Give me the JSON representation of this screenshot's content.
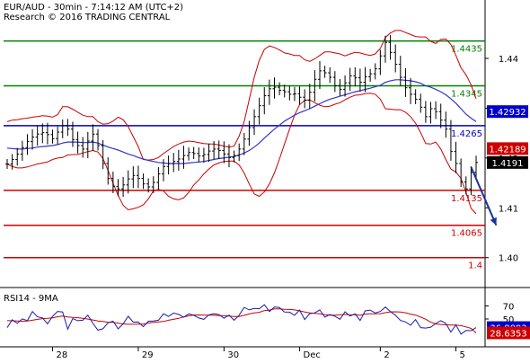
{
  "header": {
    "line1": "EUR/AUD - 30min - 7:14:12 AM (UTC+2)",
    "line2": "Research © 2016 TRADING CENTRAL"
  },
  "rsi_label": "RSI14 - 9MA",
  "colors": {
    "price": "#000000",
    "ma_fast": "#3333cc",
    "bollinger": "#cc0000",
    "support": "#cc0000",
    "resistance": "#008000",
    "pivot": "#0000cc",
    "arrow": "#1a3399",
    "rsi": "#1a1aaa",
    "rsi_ma": "#cc0000",
    "axis_label_bg": "#000000",
    "axis_label_fg": "#ffffff",
    "ma_label_bg": "#0000cc",
    "bb_label_bg": "#cc0000"
  },
  "chart_data": {
    "type": "line",
    "y_axis": {
      "range": [
        1.394,
        1.451
      ],
      "ticks": [
        1.4,
        1.41,
        1.42,
        1.43,
        1.44
      ]
    },
    "x_axis": {
      "tick_labels": [
        "28",
        "29",
        "30",
        "Dec",
        "2",
        "5"
      ],
      "tick_index": [
        9,
        26,
        43,
        58,
        74,
        89
      ]
    },
    "grid": false,
    "levels": [
      {
        "value": 1.4435,
        "label": "1.4435",
        "kind": "resistance"
      },
      {
        "value": 1.4345,
        "label": "1.4345",
        "kind": "resistance"
      },
      {
        "value": 1.4265,
        "label": "1.4265",
        "kind": "pivot"
      },
      {
        "value": 1.4135,
        "label": "1.4135",
        "kind": "support"
      },
      {
        "value": 1.4065,
        "label": "1.4065",
        "kind": "support"
      },
      {
        "value": 1.4,
        "label": "1.4",
        "kind": "support"
      }
    ],
    "price_badges": [
      {
        "value": 1.42932,
        "label": "1.42932",
        "kind": "ma"
      },
      {
        "value": 1.42189,
        "label": "1.42189",
        "kind": "bb"
      },
      {
        "value": 1.4191,
        "label": "1.4191",
        "kind": "price"
      }
    ],
    "forecast_arrow": {
      "from_index": 92,
      "from": 1.4182,
      "to_index": 97,
      "to": 1.4065
    },
    "price_series": [
      1.4188,
      1.4197,
      1.4208,
      1.4221,
      1.4233,
      1.4242,
      1.4248,
      1.4251,
      1.4247,
      1.4239,
      1.4252,
      1.4265,
      1.4258,
      1.4237,
      1.4225,
      1.4218,
      1.4234,
      1.4248,
      1.4225,
      1.4189,
      1.4159,
      1.4143,
      1.4138,
      1.4146,
      1.4158,
      1.4165,
      1.4159,
      1.4148,
      1.4142,
      1.4151,
      1.4168,
      1.4183,
      1.4189,
      1.4193,
      1.4198,
      1.4205,
      1.4211,
      1.4209,
      1.4204,
      1.4207,
      1.4214,
      1.4218,
      1.4215,
      1.4208,
      1.4201,
      1.4205,
      1.4218,
      1.4238,
      1.4261,
      1.4283,
      1.4305,
      1.4325,
      1.4339,
      1.4342,
      1.4336,
      1.4333,
      1.4328,
      1.4329,
      1.4322,
      1.4316,
      1.4332,
      1.4358,
      1.4375,
      1.4371,
      1.4362,
      1.4345,
      1.4338,
      1.4351,
      1.4365,
      1.4361,
      1.4352,
      1.4363,
      1.4369,
      1.4379,
      1.4405,
      1.4432,
      1.4412,
      1.4388,
      1.4362,
      1.4341,
      1.4328,
      1.4318,
      1.4302,
      1.4283,
      1.4299,
      1.4293,
      1.4276,
      1.4258,
      1.4213,
      1.4189,
      1.4152,
      1.4138,
      1.4171,
      1.4191
    ],
    "bb_upper": [
      1.4273,
      1.4276,
      1.4277,
      1.4279,
      1.428,
      1.4282,
      1.4283,
      1.4285,
      1.4284,
      1.4282,
      1.4287,
      1.4303,
      1.4303,
      1.4298,
      1.4292,
      1.4286,
      1.4283,
      1.4283,
      1.4273,
      1.4268,
      1.4269,
      1.4274,
      1.4282,
      1.4277,
      1.4263,
      1.4243,
      1.4223,
      1.4197,
      1.4196,
      1.4197,
      1.4201,
      1.4209,
      1.4216,
      1.4223,
      1.4228,
      1.4232,
      1.4234,
      1.4233,
      1.4231,
      1.4229,
      1.4228,
      1.4228,
      1.4226,
      1.4224,
      1.4222,
      1.4224,
      1.4244,
      1.4273,
      1.4317,
      1.4362,
      1.4396,
      1.4418,
      1.4425,
      1.4422,
      1.4417,
      1.4411,
      1.4409,
      1.4406,
      1.4406,
      1.4397,
      1.4394,
      1.4399,
      1.4406,
      1.4413,
      1.4413,
      1.4411,
      1.4409,
      1.4405,
      1.4409,
      1.4412,
      1.4411,
      1.4408,
      1.4406,
      1.4409,
      1.442,
      1.4442,
      1.4451,
      1.4456,
      1.4456,
      1.4452,
      1.4448,
      1.4444,
      1.4443,
      1.4443,
      1.4434,
      1.443,
      1.4438,
      1.4439,
      1.4428,
      1.4406,
      1.4381,
      1.4367,
      1.4347,
      1.4319
    ],
    "bb_lower": [
      1.4188,
      1.4183,
      1.418,
      1.418,
      1.4182,
      1.4185,
      1.4188,
      1.419,
      1.4192,
      1.4197,
      1.42,
      1.4201,
      1.4206,
      1.4207,
      1.4207,
      1.421,
      1.4213,
      1.4215,
      1.4212,
      1.4199,
      1.4175,
      1.4149,
      1.4125,
      1.4105,
      1.4096,
      1.4098,
      1.4101,
      1.4106,
      1.4118,
      1.4134,
      1.4137,
      1.4134,
      1.4123,
      1.4118,
      1.4116,
      1.412,
      1.4131,
      1.4146,
      1.4156,
      1.4168,
      1.4178,
      1.4186,
      1.419,
      1.4193,
      1.4194,
      1.4194,
      1.4186,
      1.417,
      1.4148,
      1.4128,
      1.4123,
      1.4132,
      1.4148,
      1.417,
      1.4198,
      1.4228,
      1.4258,
      1.4286,
      1.4307,
      1.4316,
      1.4317,
      1.4311,
      1.4306,
      1.4303,
      1.4304,
      1.4308,
      1.4311,
      1.4317,
      1.4322,
      1.4326,
      1.4327,
      1.4329,
      1.433,
      1.4328,
      1.4318,
      1.4299,
      1.4298,
      1.4297,
      1.4297,
      1.4292,
      1.4283,
      1.427,
      1.4251,
      1.4229,
      1.4228,
      1.4232,
      1.4218,
      1.4197,
      1.4178,
      1.4172,
      1.4159,
      1.4131,
      1.4099,
      1.4088
    ],
    "ma_series": [
      1.422,
      1.4219,
      1.4218,
      1.4218,
      1.4219,
      1.422,
      1.4222,
      1.4223,
      1.4224,
      1.4225,
      1.4227,
      1.423,
      1.4232,
      1.4232,
      1.4232,
      1.4231,
      1.4231,
      1.4232,
      1.423,
      1.4226,
      1.4222,
      1.4219,
      1.4216,
      1.4212,
      1.4208,
      1.4205,
      1.4201,
      1.4198,
      1.4195,
      1.4193,
      1.4191,
      1.419,
      1.4189,
      1.4189,
      1.4189,
      1.4189,
      1.419,
      1.4191,
      1.4192,
      1.4193,
      1.4195,
      1.4197,
      1.4199,
      1.42,
      1.4202,
      1.4203,
      1.4206,
      1.421,
      1.4215,
      1.4222,
      1.423,
      1.424,
      1.4249,
      1.4258,
      1.4266,
      1.4274,
      1.428,
      1.4286,
      1.4291,
      1.4295,
      1.4299,
      1.4304,
      1.4309,
      1.4314,
      1.4318,
      1.4321,
      1.4324,
      1.4327,
      1.433,
      1.4333,
      1.4335,
      1.4338,
      1.434,
      1.4343,
      1.4346,
      1.4352,
      1.4355,
      1.4357,
      1.4357,
      1.4356,
      1.4355,
      1.4353,
      1.435,
      1.4345,
      1.4342,
      1.4338,
      1.4333,
      1.4327,
      1.4319,
      1.431,
      1.4299,
      1.4288,
      1.428,
      1.4273
    ],
    "rsi": {
      "label": "RSI14 - 9MA",
      "range": [
        10,
        90
      ],
      "ticks": [
        50,
        70
      ],
      "badges": [
        {
          "value": 36.8093,
          "label": "36.8093",
          "kind": "rsi"
        },
        {
          "value": 28.6353,
          "label": "28.6353",
          "kind": "rsi_ma"
        }
      ],
      "rsi_series": [
        36.7,
        48.9,
        43.2,
        50.1,
        47.5,
        61.4,
        53.3,
        51.6,
        42.6,
        54.0,
        61.6,
        60.7,
        34.3,
        50.7,
        47.4,
        48.0,
        55.8,
        43.3,
        32.9,
        34.9,
        44.1,
        46.5,
        34.8,
        42.6,
        54.2,
        45.2,
        45.3,
        38.1,
        46.6,
        47.0,
        48.1,
        57.9,
        53.8,
        59.1,
        57.0,
        52.6,
        57.9,
        55.7,
        51.5,
        49.4,
        56.3,
        58.2,
        56.8,
        51.3,
        55.9,
        48.0,
        55.8,
        67.8,
        64.0,
        66.1,
        65.7,
        71.9,
        61.3,
        68.5,
        67.6,
        60.8,
        60.5,
        55.6,
        63.6,
        49.2,
        58.1,
        59.4,
        63.9,
        52.7,
        56.7,
        54.3,
        49.6,
        61.1,
        54.5,
        57.8,
        47.6,
        62.4,
        63.7,
        59.2,
        61.6,
        68.4,
        61.4,
        55.6,
        47.8,
        45.4,
        40.4,
        49.1,
        36.7,
        36.1,
        37.5,
        43.1,
        47.4,
        43.3,
        29.8,
        40.9,
        26.7,
        32.3,
        32.1,
        36.8
      ],
      "rsi_ma_series": [
        47.7,
        47.3,
        46.8,
        46.6,
        46.8,
        48.0,
        49.5,
        50.6,
        51.0,
        51.8,
        53.4,
        54.5,
        53.0,
        52.4,
        52.0,
        51.0,
        49.8,
        48.5,
        46.8,
        46.3,
        45.0,
        44.7,
        43.6,
        42.4,
        41.8,
        41.9,
        42.0,
        42.1,
        43.8,
        44.9,
        45.4,
        46.1,
        48.0,
        49.5,
        51.0,
        53.2,
        54.8,
        56.0,
        56.2,
        55.9,
        55.8,
        55.6,
        55.3,
        54.9,
        54.6,
        53.8,
        53.9,
        55.7,
        57.7,
        59.3,
        60.2,
        62.8,
        63.6,
        65.4,
        65.5,
        64.9,
        64.6,
        64.0,
        62.6,
        60.8,
        59.4,
        58.7,
        58.0,
        56.7,
        55.8,
        55.9,
        56.4,
        57.1,
        56.1,
        56.7,
        55.6,
        57.5,
        57.9,
        58.0,
        58.2,
        59.7,
        60.9,
        61.0,
        60.6,
        59.5,
        57.4,
        55.9,
        52.9,
        49.6,
        45.1,
        42.4,
        41.6,
        41.1,
        40.6,
        40.6,
        39.8,
        37.8,
        35.5,
        28.6
      ]
    }
  }
}
